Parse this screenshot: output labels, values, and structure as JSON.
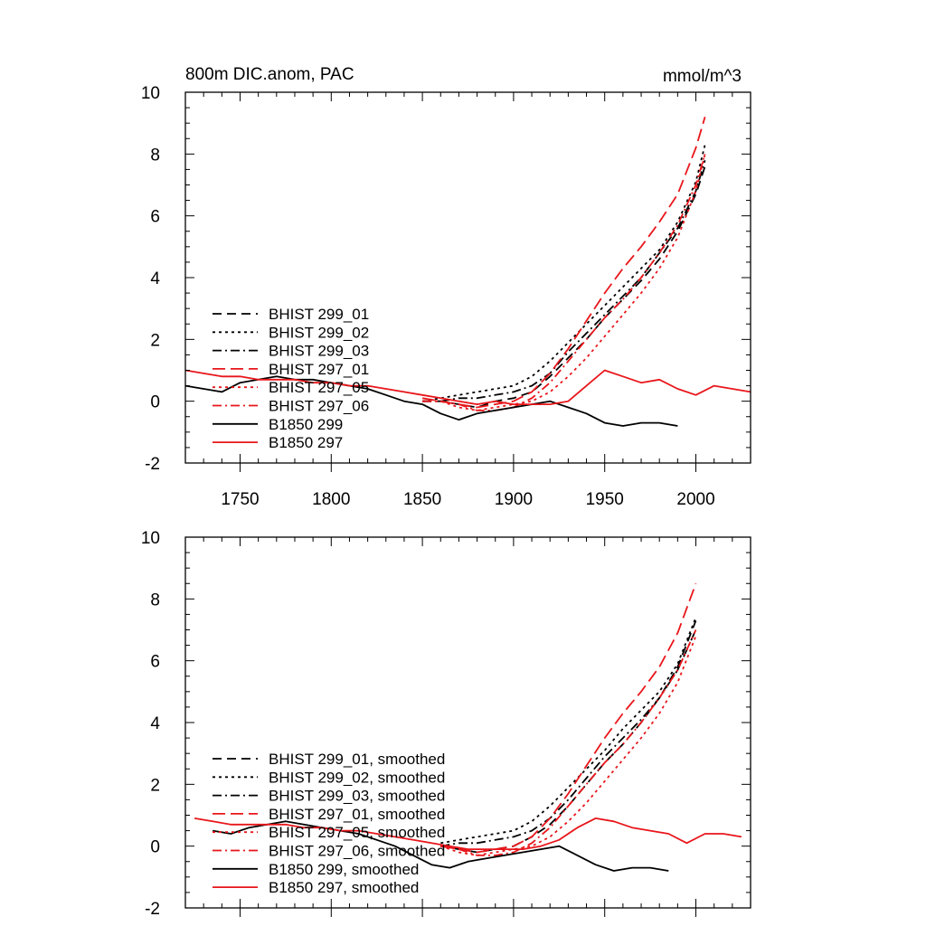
{
  "chart_data": [
    {
      "type": "line",
      "title": "800m DIC.anom, PAC",
      "units": "mmol/m^3",
      "xlim": [
        1720,
        2030
      ],
      "ylim": [
        -2,
        10
      ],
      "x_ticks": [
        1750,
        1800,
        1850,
        1900,
        1950,
        2000
      ],
      "x_tick_labels": [
        "1750",
        "1800",
        "1850",
        "1900",
        "1950",
        "2000"
      ],
      "y_ticks": [
        -2,
        0,
        2,
        4,
        6,
        8,
        10
      ],
      "y_tick_labels": [
        "-2",
        "0",
        "2",
        "4",
        "6",
        "8",
        "10"
      ],
      "grid": false,
      "legend_position": "lower-left",
      "series": [
        {
          "name": "BHIST 299_01",
          "color": "#000000",
          "dash": "dash",
          "x": [
            1850,
            1860,
            1870,
            1880,
            1890,
            1900,
            1910,
            1920,
            1930,
            1940,
            1950,
            1960,
            1970,
            1980,
            1990,
            2000,
            2005
          ],
          "y": [
            0.0,
            0.0,
            -0.1,
            -0.2,
            0.0,
            0.1,
            0.3,
            0.8,
            1.4,
            2.0,
            2.7,
            3.3,
            3.9,
            4.6,
            5.5,
            6.7,
            7.6
          ]
        },
        {
          "name": "BHIST 299_02",
          "color": "#000000",
          "dash": "dot",
          "x": [
            1850,
            1860,
            1870,
            1880,
            1890,
            1900,
            1910,
            1920,
            1930,
            1940,
            1950,
            1960,
            1970,
            1980,
            1990,
            2000,
            2005
          ],
          "y": [
            0.0,
            0.1,
            0.2,
            0.3,
            0.4,
            0.5,
            0.8,
            1.3,
            1.9,
            2.5,
            3.1,
            3.7,
            4.3,
            4.9,
            5.8,
            7.1,
            8.3
          ]
        },
        {
          "name": "BHIST 299_03",
          "color": "#000000",
          "dash": "dashdot",
          "x": [
            1850,
            1860,
            1870,
            1880,
            1890,
            1900,
            1910,
            1920,
            1930,
            1940,
            1950,
            1960,
            1970,
            1980,
            1990,
            2000,
            2005
          ],
          "y": [
            0.0,
            0.0,
            0.1,
            0.1,
            0.2,
            0.3,
            0.5,
            0.9,
            1.6,
            2.2,
            2.8,
            3.4,
            4.0,
            4.8,
            5.6,
            6.8,
            7.8
          ]
        },
        {
          "name": "BHIST 297_01",
          "color": "#e8161b",
          "dash": "longdash",
          "x": [
            1850,
            1860,
            1870,
            1880,
            1890,
            1900,
            1910,
            1920,
            1930,
            1940,
            1950,
            1960,
            1970,
            1980,
            1990,
            2000,
            2005
          ],
          "y": [
            0.1,
            0.0,
            -0.1,
            -0.2,
            -0.1,
            0.0,
            0.3,
            0.9,
            1.7,
            2.6,
            3.5,
            4.3,
            5.0,
            5.8,
            6.7,
            8.2,
            9.2
          ]
        },
        {
          "name": "BHIST 297_05",
          "color": "#e8161b",
          "dash": "dot",
          "x": [
            1850,
            1860,
            1870,
            1880,
            1890,
            1900,
            1910,
            1920,
            1930,
            1940,
            1950,
            1960,
            1970,
            1980,
            1990,
            2000,
            2005
          ],
          "y": [
            0.0,
            0.0,
            -0.2,
            -0.3,
            -0.2,
            -0.1,
            0.0,
            0.3,
            0.8,
            1.4,
            2.1,
            2.8,
            3.5,
            4.3,
            5.3,
            6.8,
            8.0
          ]
        },
        {
          "name": "BHIST 297_06",
          "color": "#e8161b",
          "dash": "dashdot",
          "x": [
            1850,
            1860,
            1870,
            1880,
            1890,
            1900,
            1910,
            1920,
            1930,
            1940,
            1950,
            1960,
            1970,
            1980,
            1990,
            2000,
            2005
          ],
          "y": [
            0.0,
            0.0,
            -0.1,
            -0.3,
            -0.3,
            -0.2,
            0.1,
            0.6,
            1.3,
            2.0,
            2.7,
            3.3,
            4.0,
            4.8,
            5.7,
            7.0,
            8.0
          ]
        },
        {
          "name": "B1850 299",
          "color": "#000000",
          "dash": "solid",
          "x": [
            1720,
            1730,
            1740,
            1750,
            1760,
            1770,
            1780,
            1790,
            1800,
            1810,
            1820,
            1830,
            1840,
            1850,
            1860,
            1870,
            1880,
            1890,
            1900,
            1910,
            1920,
            1930,
            1940,
            1950,
            1960,
            1970,
            1980,
            1990
          ],
          "y": [
            0.5,
            0.4,
            0.3,
            0.6,
            0.7,
            0.8,
            0.7,
            0.7,
            0.6,
            0.5,
            0.4,
            0.2,
            0.0,
            -0.1,
            -0.4,
            -0.6,
            -0.4,
            -0.3,
            -0.2,
            -0.1,
            0.0,
            -0.2,
            -0.4,
            -0.7,
            -0.8,
            -0.7,
            -0.7,
            -0.8
          ]
        },
        {
          "name": "B1850 297",
          "color": "#e8161b",
          "dash": "solid",
          "x": [
            1720,
            1730,
            1740,
            1750,
            1760,
            1770,
            1780,
            1790,
            1800,
            1810,
            1820,
            1830,
            1840,
            1850,
            1860,
            1870,
            1880,
            1890,
            1900,
            1910,
            1920,
            1930,
            1940,
            1950,
            1960,
            1970,
            1980,
            1990,
            2000,
            2010,
            2020,
            2030
          ],
          "y": [
            1.0,
            0.9,
            0.8,
            0.8,
            0.7,
            0.7,
            0.7,
            0.6,
            0.6,
            0.5,
            0.5,
            0.4,
            0.3,
            0.2,
            0.1,
            0.0,
            -0.1,
            0.0,
            -0.1,
            -0.1,
            -0.1,
            0.0,
            0.5,
            1.0,
            0.8,
            0.6,
            0.7,
            0.4,
            0.2,
            0.5,
            0.4,
            0.3
          ]
        }
      ]
    },
    {
      "type": "line",
      "title": "",
      "units": "",
      "xlim": [
        1720,
        2030
      ],
      "ylim": [
        -2,
        10
      ],
      "x_ticks": [
        1750,
        1800,
        1850,
        1900,
        1950,
        2000
      ],
      "x_tick_labels": [],
      "y_ticks": [
        -2,
        0,
        2,
        4,
        6,
        8,
        10
      ],
      "y_tick_labels": [
        "-2",
        "0",
        "2",
        "4",
        "6",
        "8",
        "10"
      ],
      "grid": false,
      "legend_position": "lower-left",
      "series": [
        {
          "name": "BHIST 299_01, smoothed",
          "color": "#000000",
          "dash": "dash",
          "x": [
            1860,
            1870,
            1880,
            1890,
            1900,
            1910,
            1920,
            1930,
            1940,
            1950,
            1960,
            1970,
            1980,
            1990,
            2000
          ],
          "y": [
            0.0,
            -0.1,
            -0.2,
            -0.1,
            0.0,
            0.3,
            0.7,
            1.3,
            2.0,
            2.7,
            3.3,
            4.0,
            4.8,
            5.8,
            7.3
          ]
        },
        {
          "name": "BHIST 299_02, smoothed",
          "color": "#000000",
          "dash": "dot",
          "x": [
            1860,
            1870,
            1880,
            1890,
            1900,
            1910,
            1920,
            1930,
            1940,
            1950,
            1960,
            1970,
            1980,
            1990,
            2000
          ],
          "y": [
            0.1,
            0.2,
            0.3,
            0.4,
            0.5,
            0.8,
            1.3,
            1.9,
            2.5,
            3.1,
            3.8,
            4.4,
            5.0,
            5.9,
            7.4
          ]
        },
        {
          "name": "BHIST 299_03, smoothed",
          "color": "#000000",
          "dash": "dashdot",
          "x": [
            1860,
            1870,
            1880,
            1890,
            1900,
            1910,
            1920,
            1930,
            1940,
            1950,
            1960,
            1970,
            1980,
            1990,
            2000
          ],
          "y": [
            0.0,
            0.1,
            0.1,
            0.2,
            0.3,
            0.5,
            0.9,
            1.5,
            2.2,
            2.9,
            3.5,
            4.1,
            4.8,
            5.7,
            7.0
          ]
        },
        {
          "name": "BHIST 297_01, smoothed",
          "color": "#e8161b",
          "dash": "longdash",
          "x": [
            1860,
            1870,
            1880,
            1890,
            1900,
            1910,
            1920,
            1930,
            1940,
            1950,
            1960,
            1970,
            1980,
            1990,
            2000
          ],
          "y": [
            0.0,
            -0.1,
            -0.2,
            -0.1,
            0.0,
            0.3,
            0.9,
            1.7,
            2.6,
            3.5,
            4.3,
            5.0,
            5.8,
            6.9,
            8.5
          ]
        },
        {
          "name": "BHIST 297_05, smoothed",
          "color": "#e8161b",
          "dash": "dot",
          "x": [
            1860,
            1870,
            1880,
            1890,
            1900,
            1910,
            1920,
            1930,
            1940,
            1950,
            1960,
            1970,
            1980,
            1990,
            2000
          ],
          "y": [
            0.0,
            -0.2,
            -0.3,
            -0.2,
            -0.1,
            0.0,
            0.3,
            0.8,
            1.4,
            2.1,
            2.8,
            3.5,
            4.3,
            5.3,
            6.8
          ]
        },
        {
          "name": "BHIST 297_06, smoothed",
          "color": "#e8161b",
          "dash": "dashdot",
          "x": [
            1860,
            1870,
            1880,
            1890,
            1900,
            1910,
            1920,
            1930,
            1940,
            1950,
            1960,
            1970,
            1980,
            1990,
            2000
          ],
          "y": [
            0.0,
            -0.1,
            -0.3,
            -0.3,
            -0.2,
            0.1,
            0.6,
            1.3,
            2.0,
            2.7,
            3.3,
            4.0,
            4.8,
            5.7,
            7.0
          ]
        },
        {
          "name": "B1850 299, smoothed",
          "color": "#000000",
          "dash": "solid",
          "x": [
            1735,
            1745,
            1755,
            1765,
            1775,
            1785,
            1795,
            1805,
            1815,
            1825,
            1835,
            1845,
            1855,
            1865,
            1875,
            1885,
            1895,
            1905,
            1915,
            1925,
            1935,
            1945,
            1955,
            1965,
            1975,
            1985
          ],
          "y": [
            0.5,
            0.4,
            0.6,
            0.7,
            0.8,
            0.7,
            0.6,
            0.5,
            0.4,
            0.2,
            0.0,
            -0.3,
            -0.6,
            -0.7,
            -0.5,
            -0.4,
            -0.3,
            -0.2,
            -0.1,
            0.0,
            -0.3,
            -0.6,
            -0.8,
            -0.7,
            -0.7,
            -0.8
          ]
        },
        {
          "name": "B1850 297, smoothed",
          "color": "#e8161b",
          "dash": "solid",
          "x": [
            1725,
            1735,
            1745,
            1755,
            1765,
            1775,
            1785,
            1795,
            1805,
            1815,
            1825,
            1835,
            1845,
            1855,
            1865,
            1875,
            1885,
            1895,
            1905,
            1915,
            1925,
            1935,
            1945,
            1955,
            1965,
            1975,
            1985,
            1995,
            2005,
            2015,
            2025
          ],
          "y": [
            0.9,
            0.8,
            0.7,
            0.7,
            0.7,
            0.7,
            0.6,
            0.6,
            0.5,
            0.5,
            0.4,
            0.3,
            0.2,
            0.1,
            0.0,
            -0.1,
            -0.1,
            -0.1,
            -0.1,
            0.0,
            0.2,
            0.6,
            0.9,
            0.8,
            0.6,
            0.5,
            0.4,
            0.1,
            0.4,
            0.4,
            0.3
          ]
        }
      ]
    }
  ]
}
